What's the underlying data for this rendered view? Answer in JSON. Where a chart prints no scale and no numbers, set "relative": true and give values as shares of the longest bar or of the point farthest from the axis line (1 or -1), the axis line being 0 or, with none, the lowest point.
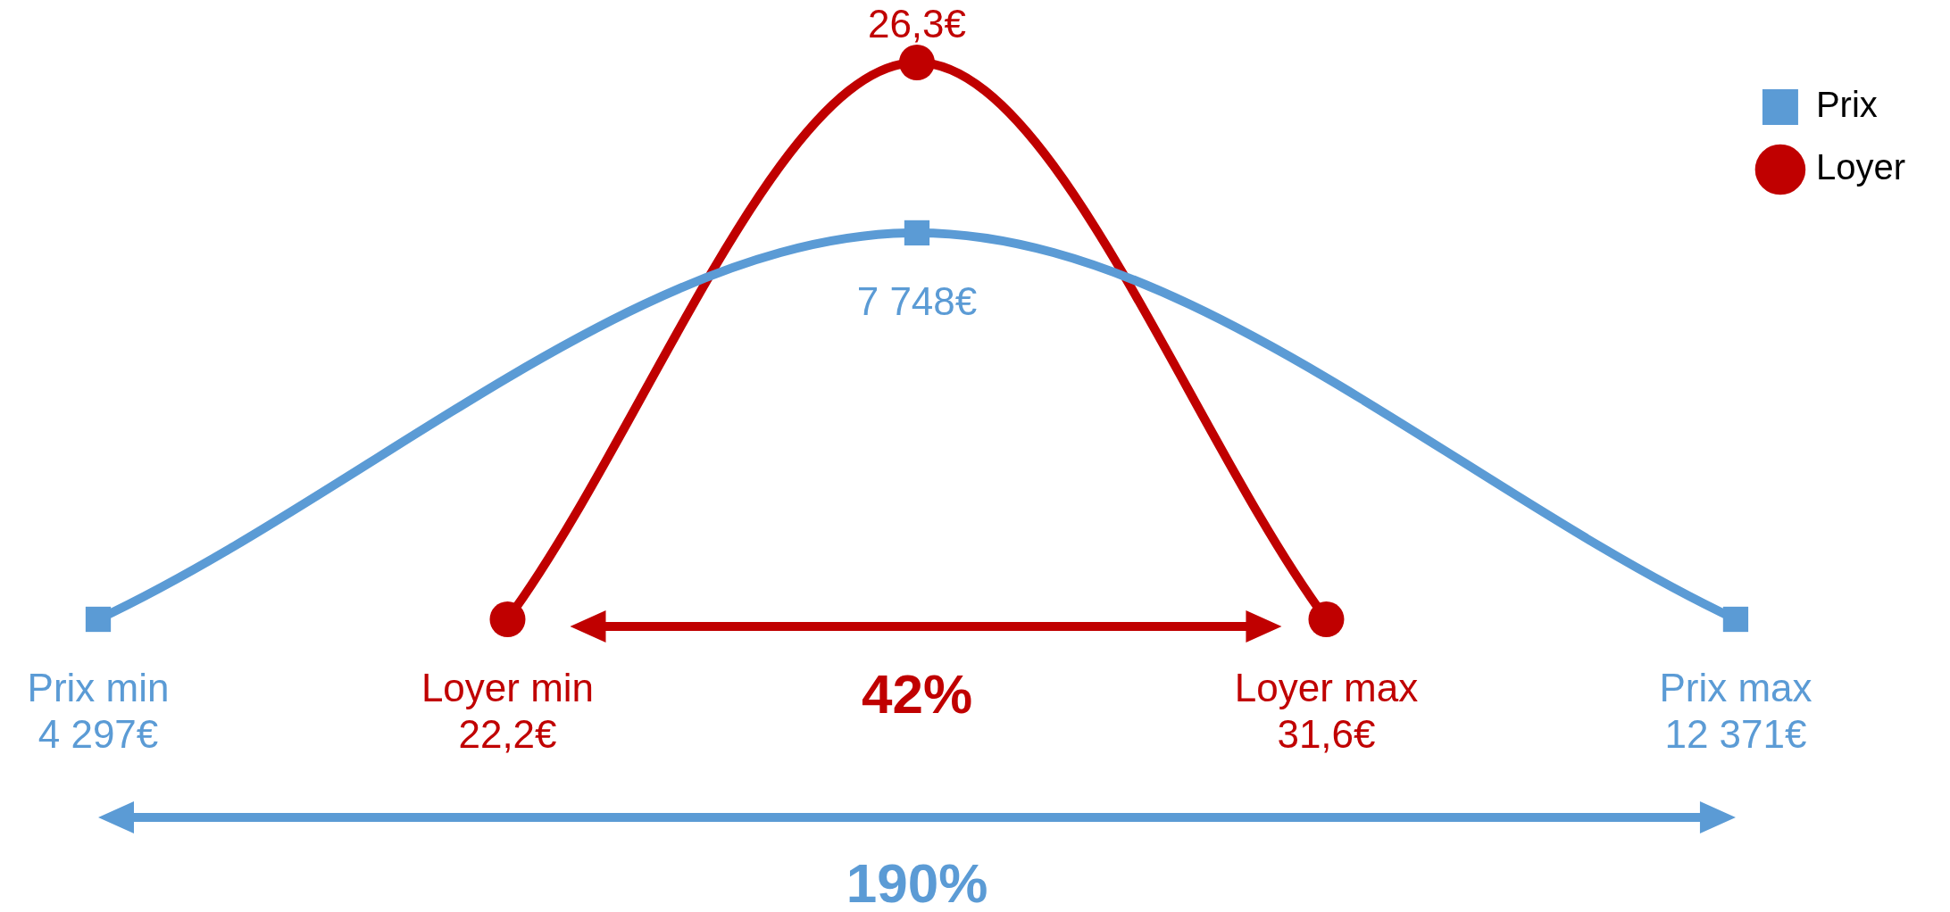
{
  "chart_data": {
    "type": "line",
    "relative": true,
    "categories": [
      null,
      null,
      null,
      null,
      null
    ],
    "series": [
      {
        "name": "Prix",
        "color": "#5b9bd5",
        "marker": "square",
        "values": [
          0,
          null,
          0.694,
          null,
          0
        ]
      },
      {
        "name": "Loyer",
        "color": "#c00000",
        "marker": "circle",
        "values": [
          null,
          0,
          1,
          0,
          null
        ]
      }
    ],
    "annotations": [
      "Prix min\n4 297€",
      "7 748€",
      "Prix max\n12 371€",
      "Loyer min\n22,2€",
      "26,3€",
      "Loyer max\n31,6€",
      "42%",
      "190%"
    ],
    "legend": "top right"
  }
}
